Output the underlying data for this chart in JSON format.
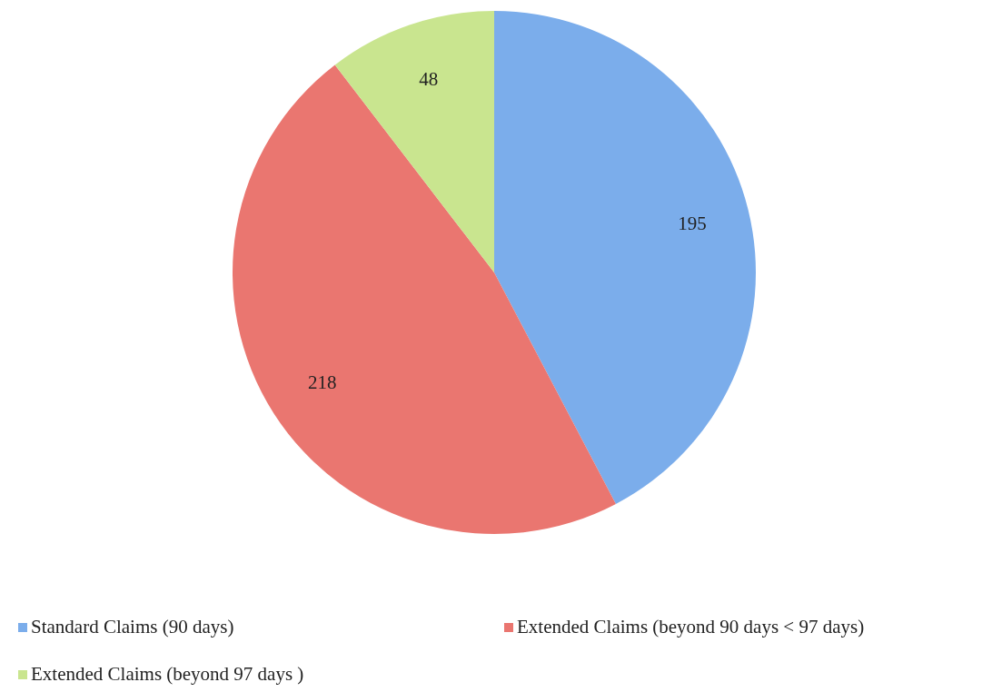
{
  "chart_data": {
    "type": "pie",
    "categories": [
      "Standard Claims (90 days)",
      "Extended Claims (beyond 90 days < 97 days)",
      "Extended Claims (beyond 97 days )"
    ],
    "values": [
      195,
      218,
      48
    ],
    "colors": [
      "#7badeb",
      "#ea7670",
      "#c9e58f"
    ],
    "data_labels": true,
    "legend": "bottom"
  }
}
